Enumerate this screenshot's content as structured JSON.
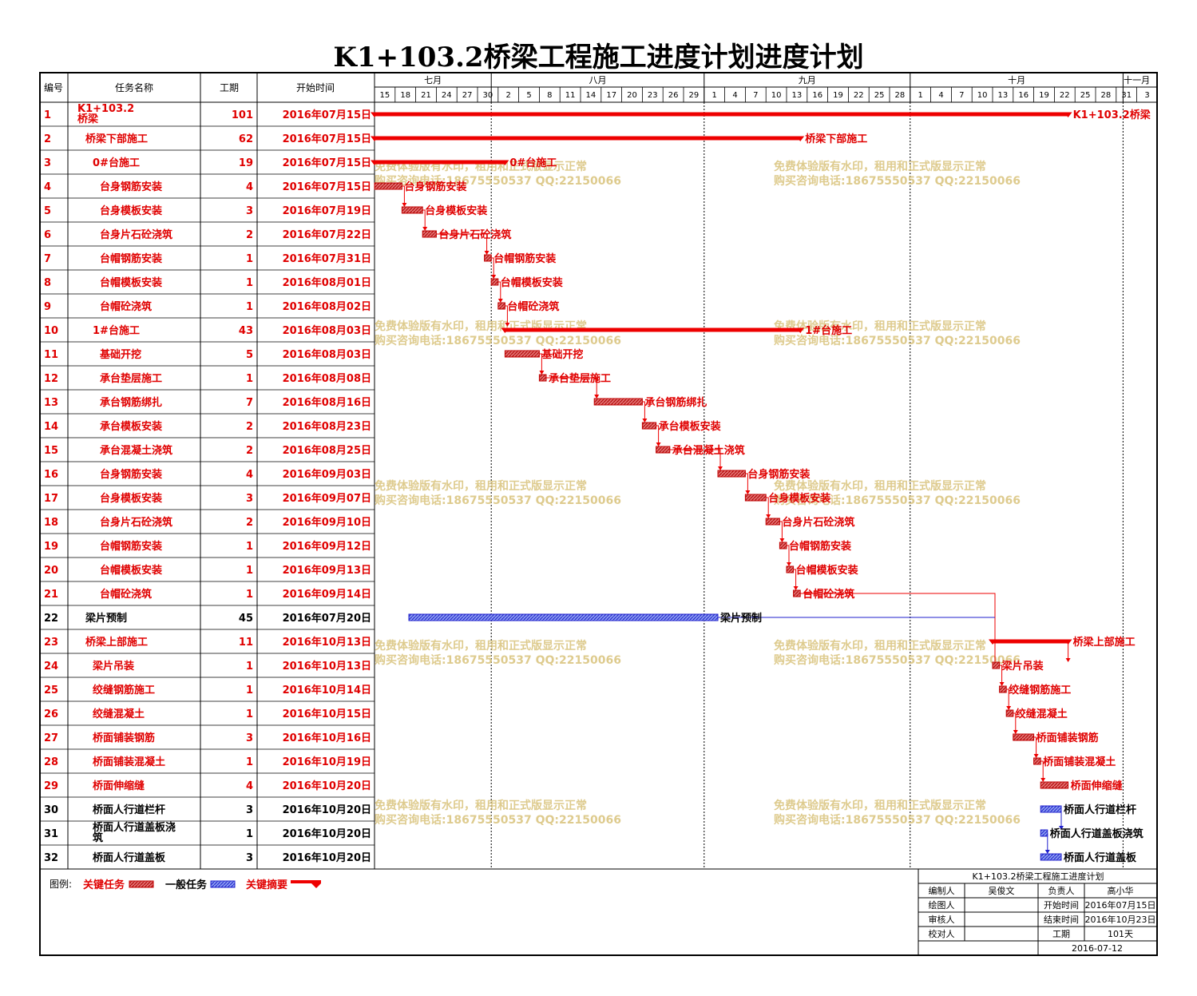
{
  "title": "K1+103.2桥梁工程施工进度计划进度计划",
  "header": {
    "id": "编号",
    "name": "任务名称",
    "duration": "工期",
    "start": "开始时间"
  },
  "months": [
    {
      "label": "七月",
      "from_day": 0,
      "to_day": 17
    },
    {
      "label": "八月",
      "from_day": 17,
      "to_day": 48
    },
    {
      "label": "九月",
      "from_day": 48,
      "to_day": 78
    },
    {
      "label": "十月",
      "from_day": 78,
      "to_day": 109
    },
    {
      "label": "十一月",
      "from_day": 109,
      "to_day": 113
    }
  ],
  "day_ticks": [
    "15",
    "18",
    "21",
    "24",
    "27",
    "30",
    "2",
    "5",
    "8",
    "11",
    "14",
    "17",
    "20",
    "23",
    "26",
    "29",
    "1",
    "4",
    "7",
    "10",
    "13",
    "16",
    "19",
    "22",
    "25",
    "28",
    "1",
    "4",
    "7",
    "10",
    "13",
    "16",
    "19",
    "22",
    "25",
    "28",
    "31",
    "3"
  ],
  "colors": {
    "critical": "#ee0000",
    "normal": "#1f1fcc",
    "critical_fill": "#dd5555",
    "normal_fill": "#6a7fe0",
    "text_critical": "#e00000",
    "watermark": "#d8c27a"
  },
  "chart_data": {
    "type": "gantt",
    "title": "K1+103.2桥梁工程施工进度计划进度计划",
    "timeline_start": "2016-07-15",
    "timeline_end": "2016-11-05",
    "tasks": [
      {
        "id": "1",
        "name": "K1+103.2桥梁",
        "duration": "101",
        "start": "2016年07月15日",
        "s": "2016-07-15",
        "d": 101,
        "kind": "summary",
        "critical": true,
        "level": 0
      },
      {
        "id": "2",
        "name": "桥梁下部施工",
        "duration": "62",
        "start": "2016年07月15日",
        "s": "2016-07-15",
        "d": 62,
        "kind": "summary",
        "critical": true,
        "level": 1
      },
      {
        "id": "3",
        "name": "0#台施工",
        "duration": "19",
        "start": "2016年07月15日",
        "s": "2016-07-15",
        "d": 19,
        "kind": "summary",
        "critical": true,
        "level": 2
      },
      {
        "id": "4",
        "name": "台身钢筋安装",
        "duration": "4",
        "start": "2016年07月15日",
        "s": "2016-07-15",
        "d": 4,
        "kind": "task",
        "critical": true,
        "level": 3
      },
      {
        "id": "5",
        "name": "台身模板安装",
        "duration": "3",
        "start": "2016年07月19日",
        "s": "2016-07-19",
        "d": 3,
        "kind": "task",
        "critical": true,
        "level": 3
      },
      {
        "id": "6",
        "name": "台身片石砼浇筑",
        "duration": "2",
        "start": "2016年07月22日",
        "s": "2016-07-22",
        "d": 2,
        "kind": "task",
        "critical": true,
        "level": 3
      },
      {
        "id": "7",
        "name": "台帽钢筋安装",
        "duration": "1",
        "start": "2016年07月31日",
        "s": "2016-07-31",
        "d": 1,
        "kind": "task",
        "critical": true,
        "level": 3
      },
      {
        "id": "8",
        "name": "台帽模板安装",
        "duration": "1",
        "start": "2016年08月01日",
        "s": "2016-08-01",
        "d": 1,
        "kind": "task",
        "critical": true,
        "level": 3
      },
      {
        "id": "9",
        "name": "台帽砼浇筑",
        "duration": "1",
        "start": "2016年08月02日",
        "s": "2016-08-02",
        "d": 1,
        "kind": "task",
        "critical": true,
        "level": 3
      },
      {
        "id": "10",
        "name": "1#台施工",
        "duration": "43",
        "start": "2016年08月03日",
        "s": "2016-08-03",
        "d": 43,
        "kind": "summary",
        "critical": true,
        "level": 2
      },
      {
        "id": "11",
        "name": "基础开挖",
        "duration": "5",
        "start": "2016年08月03日",
        "s": "2016-08-03",
        "d": 5,
        "kind": "task",
        "critical": true,
        "level": 3
      },
      {
        "id": "12",
        "name": "承台垫层施工",
        "duration": "1",
        "start": "2016年08月08日",
        "s": "2016-08-08",
        "d": 1,
        "kind": "task",
        "critical": true,
        "level": 3
      },
      {
        "id": "13",
        "name": "承台钢筋绑扎",
        "duration": "7",
        "start": "2016年08月16日",
        "s": "2016-08-16",
        "d": 7,
        "kind": "task",
        "critical": true,
        "level": 3
      },
      {
        "id": "14",
        "name": "承台模板安装",
        "duration": "2",
        "start": "2016年08月23日",
        "s": "2016-08-23",
        "d": 2,
        "kind": "task",
        "critical": true,
        "level": 3
      },
      {
        "id": "15",
        "name": "承台混凝土浇筑",
        "duration": "2",
        "start": "2016年08月25日",
        "s": "2016-08-25",
        "d": 2,
        "kind": "task",
        "critical": true,
        "level": 3
      },
      {
        "id": "16",
        "name": "台身钢筋安装",
        "duration": "4",
        "start": "2016年09月03日",
        "s": "2016-09-03",
        "d": 4,
        "kind": "task",
        "critical": true,
        "level": 3
      },
      {
        "id": "17",
        "name": "台身模板安装",
        "duration": "3",
        "start": "2016年09月07日",
        "s": "2016-09-07",
        "d": 3,
        "kind": "task",
        "critical": true,
        "level": 3
      },
      {
        "id": "18",
        "name": "台身片石砼浇筑",
        "duration": "2",
        "start": "2016年09月10日",
        "s": "2016-09-10",
        "d": 2,
        "kind": "task",
        "critical": true,
        "level": 3
      },
      {
        "id": "19",
        "name": "台帽钢筋安装",
        "duration": "1",
        "start": "2016年09月12日",
        "s": "2016-09-12",
        "d": 1,
        "kind": "task",
        "critical": true,
        "level": 3
      },
      {
        "id": "20",
        "name": "台帽模板安装",
        "duration": "1",
        "start": "2016年09月13日",
        "s": "2016-09-13",
        "d": 1,
        "kind": "task",
        "critical": true,
        "level": 3
      },
      {
        "id": "21",
        "name": "台帽砼浇筑",
        "duration": "1",
        "start": "2016年09月14日",
        "s": "2016-09-14",
        "d": 1,
        "kind": "task",
        "critical": true,
        "level": 3
      },
      {
        "id": "22",
        "name": "梁片预制",
        "duration": "45",
        "start": "2016年07月20日",
        "s": "2016-07-20",
        "d": 45,
        "kind": "task",
        "critical": false,
        "level": 1
      },
      {
        "id": "23",
        "name": "桥梁上部施工",
        "duration": "11",
        "start": "2016年10月13日",
        "s": "2016-10-13",
        "d": 11,
        "kind": "summary",
        "critical": true,
        "level": 1
      },
      {
        "id": "24",
        "name": "梁片吊装",
        "duration": "1",
        "start": "2016年10月13日",
        "s": "2016-10-13",
        "d": 1,
        "kind": "task",
        "critical": true,
        "level": 2
      },
      {
        "id": "25",
        "name": "绞缝钢筋施工",
        "duration": "1",
        "start": "2016年10月14日",
        "s": "2016-10-14",
        "d": 1,
        "kind": "task",
        "critical": true,
        "level": 2
      },
      {
        "id": "26",
        "name": "绞缝混凝土",
        "duration": "1",
        "start": "2016年10月15日",
        "s": "2016-10-15",
        "d": 1,
        "kind": "task",
        "critical": true,
        "level": 2
      },
      {
        "id": "27",
        "name": "桥面铺装钢筋",
        "duration": "3",
        "start": "2016年10月16日",
        "s": "2016-10-16",
        "d": 3,
        "kind": "task",
        "critical": true,
        "level": 2
      },
      {
        "id": "28",
        "name": "桥面铺装混凝土",
        "duration": "1",
        "start": "2016年10月19日",
        "s": "2016-10-19",
        "d": 1,
        "kind": "task",
        "critical": true,
        "level": 2
      },
      {
        "id": "29",
        "name": "桥面伸缩缝",
        "duration": "4",
        "start": "2016年10月20日",
        "s": "2016-10-20",
        "d": 4,
        "kind": "task",
        "critical": true,
        "level": 2
      },
      {
        "id": "30",
        "name": "桥面人行道栏杆",
        "duration": "3",
        "start": "2016年10月20日",
        "s": "2016-10-20",
        "d": 3,
        "kind": "task",
        "critical": false,
        "level": 2
      },
      {
        "id": "31",
        "name": "桥面人行道盖板浇筑",
        "duration": "1",
        "start": "2016年10月20日",
        "s": "2016-10-20",
        "d": 1,
        "kind": "task",
        "critical": false,
        "level": 2
      },
      {
        "id": "32",
        "name": "桥面人行道盖板",
        "duration": "3",
        "start": "2016年10月20日",
        "s": "2016-10-20",
        "d": 3,
        "kind": "task",
        "critical": false,
        "level": 2
      }
    ]
  },
  "watermark": {
    "line1": "免费体验版有水印，租用和正式版显示正常",
    "line2": "购买咨询电话:18675550537 QQ:22150066"
  },
  "legend": {
    "label": "图例:",
    "critical_task": "关键任务",
    "normal_task": "一般任务",
    "critical_summary": "关键摘要"
  },
  "titleblock": {
    "title": "K1+103.2桥梁工程施工进度计划",
    "editor_label": "编制人",
    "editor": "吴俊文",
    "owner_label": "负责人",
    "owner": "高小华",
    "drawer_label": "绘图人",
    "start_label": "开始时间",
    "start": "2016年07月15日",
    "reviewer_label": "审核人",
    "end_label": "结束时间",
    "end": "2016年10月23日",
    "checker_label": "校对人",
    "duration_label": "工期",
    "duration": "101天",
    "date": "2016-07-12"
  }
}
